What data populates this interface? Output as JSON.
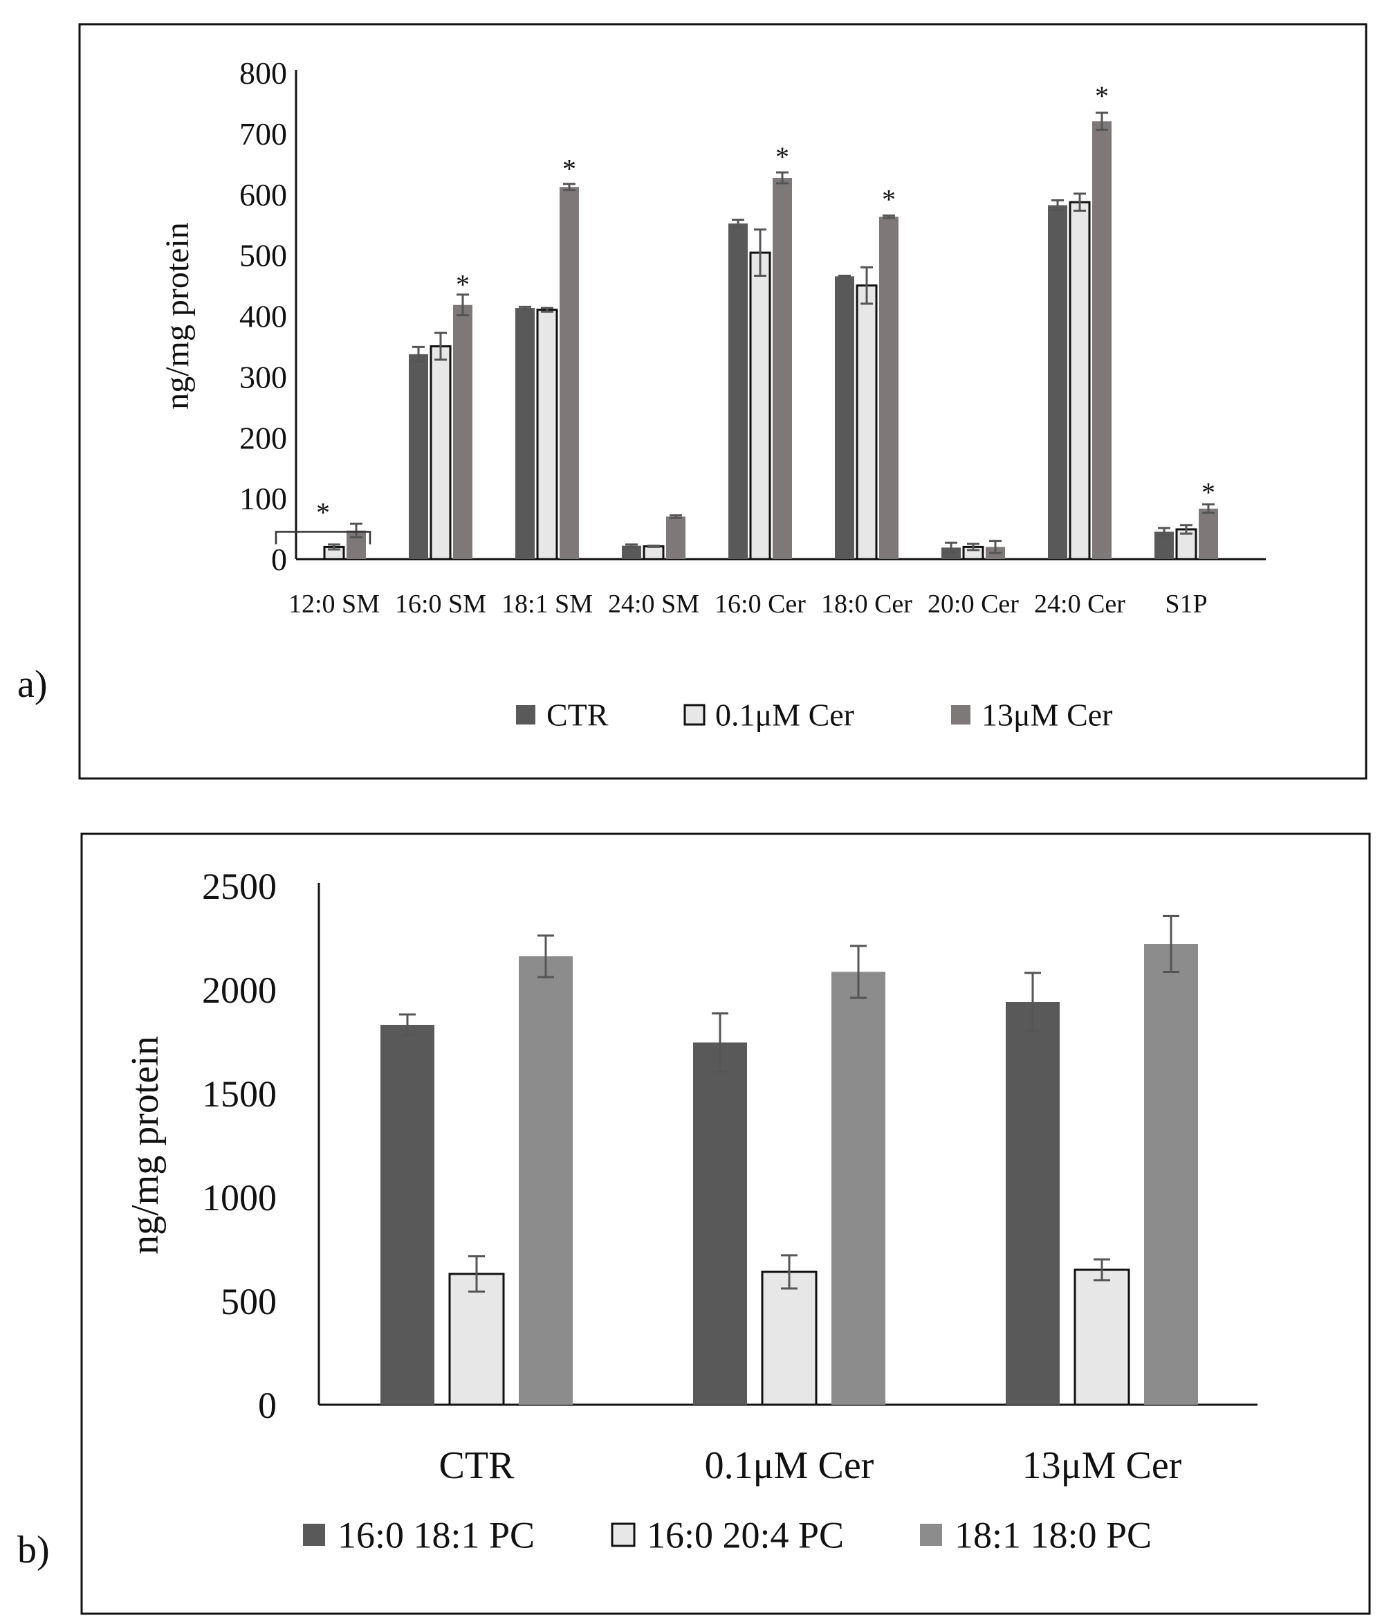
{
  "panels": [
    {
      "panel_label": "a)",
      "legend": [
        {
          "label": "CTR",
          "color": "#595959",
          "outlined": false
        },
        {
          "label": "0.1μM Cer",
          "color": "#e7e7e7",
          "outlined": true
        },
        {
          "label": "13μM Cer",
          "color": "#7f7879",
          "outlined": false
        }
      ]
    },
    {
      "panel_label": "b)",
      "legend": [
        {
          "label": "16:0 18:1 PC",
          "color": "#595959",
          "outlined": false
        },
        {
          "label": "16:0 20:4 PC",
          "color": "#e7e7e7",
          "outlined": true
        },
        {
          "label": "18:1 18:0 PC",
          "color": "#8c8c8c",
          "outlined": false
        }
      ]
    }
  ],
  "chart_data": [
    {
      "type": "bar",
      "title": "",
      "xlabel": "",
      "ylabel": "ng/mg protein",
      "ylim": [
        0,
        800
      ],
      "yticks": [
        "0",
        "100",
        "200",
        "300",
        "400",
        "500",
        "600",
        "700",
        "800"
      ],
      "categories": [
        "12:0 SM",
        "16:0 SM",
        "18:1 SM",
        "24:0 SM",
        "16:0 Cer",
        "18:0 Cer",
        "20:0 Cer",
        "24:0 Cer",
        "S1P"
      ],
      "series": [
        {
          "name": "CTR",
          "color": "#595959",
          "values": [
            0,
            337,
            413,
            22,
            552,
            465,
            19,
            582,
            45
          ],
          "errors": [
            0,
            12,
            2,
            2,
            6,
            1,
            8,
            8,
            6
          ]
        },
        {
          "name": "0.1μM Cer",
          "color": "#e7e7e7",
          "values": [
            20,
            350,
            410,
            21,
            504,
            450,
            20,
            587,
            49
          ],
          "errors": [
            4,
            22,
            3,
            1,
            38,
            30,
            5,
            14,
            7
          ]
        },
        {
          "name": "13μM Cer",
          "color": "#7f7879",
          "values": [
            47,
            418,
            612,
            70,
            627,
            563,
            20,
            720,
            83
          ],
          "errors": [
            11,
            17,
            5,
            2,
            9,
            2,
            10,
            14,
            7
          ]
        }
      ],
      "annotations": [
        {
          "text": "*",
          "category": "12:0 SM",
          "bracket": true,
          "y": 75
        },
        {
          "text": "*",
          "category": "16:0 SM",
          "series": "13μM Cer",
          "y": 450
        },
        {
          "text": "*",
          "category": "18:1 SM",
          "series": "13μM Cer",
          "y": 640
        },
        {
          "text": "*",
          "category": "16:0 Cer",
          "series": "13μM Cer",
          "y": 660
        },
        {
          "text": "*",
          "category": "18:0 Cer",
          "series": "13μM Cer",
          "y": 590
        },
        {
          "text": "*",
          "category": "24:0 Cer",
          "series": "13μM Cer",
          "y": 760
        },
        {
          "text": "*",
          "category": "S1P",
          "series": "13μM Cer",
          "y": 108
        }
      ],
      "grid": false,
      "legend_position": "bottom"
    },
    {
      "type": "bar",
      "title": "",
      "xlabel": "",
      "ylabel": "ng/mg protein",
      "ylim": [
        0,
        2500
      ],
      "yticks": [
        "0",
        "500",
        "1000",
        "1500",
        "2000",
        "2500"
      ],
      "categories": [
        "CTR",
        "0.1μM Cer",
        "13μM Cer"
      ],
      "series": [
        {
          "name": "16:0 18:1 PC",
          "color": "#595959",
          "values": [
            1830,
            1745,
            1940
          ],
          "errors": [
            50,
            140,
            140
          ]
        },
        {
          "name": "16:0 20:4 PC",
          "color": "#e7e7e7",
          "values": [
            630,
            640,
            650
          ],
          "errors": [
            85,
            80,
            50
          ]
        },
        {
          "name": "18:1 18:0 PC",
          "color": "#8c8c8c",
          "values": [
            2160,
            2085,
            2220
          ],
          "errors": [
            100,
            125,
            135
          ]
        }
      ],
      "grid": false,
      "legend_position": "bottom"
    }
  ]
}
